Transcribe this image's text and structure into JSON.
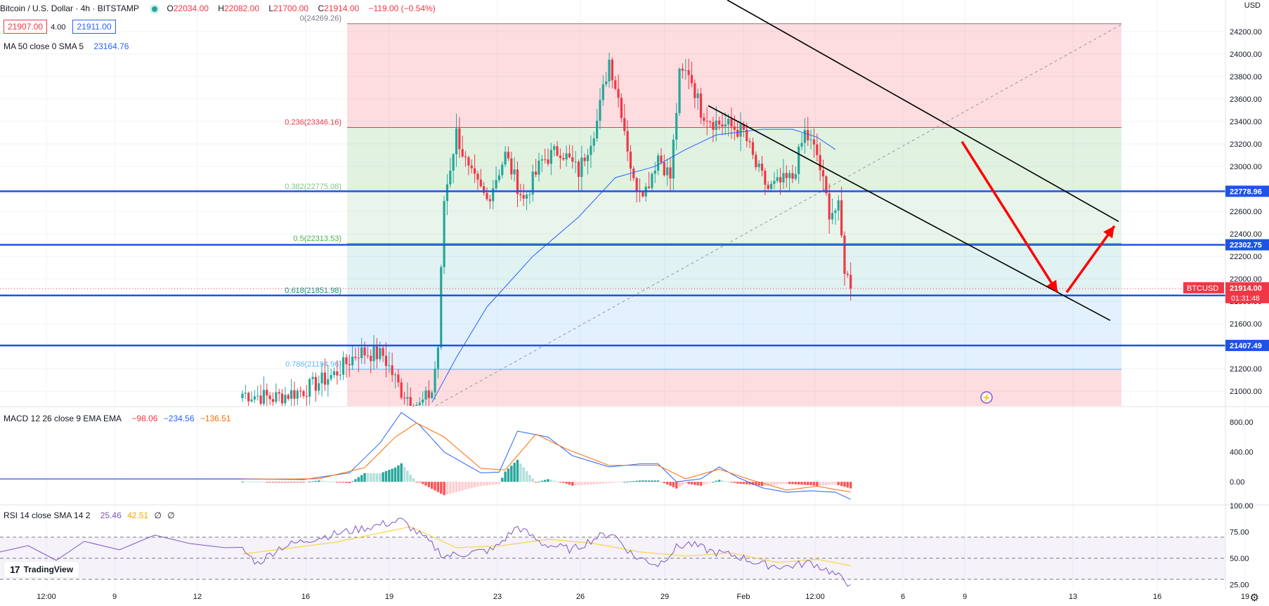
{
  "header": {
    "title": "Bitcoin / U.S. Dollar · 4h · BITSTAMP",
    "o_label": "O",
    "o": "22034.00",
    "h_label": "H",
    "h": "22082.00",
    "l_label": "L",
    "l": "21700.00",
    "c_label": "C",
    "c": "21914.00",
    "change": "−119.00 (−0.54%)",
    "bid": "21907.00",
    "spread": "4.00",
    "ask": "21911.00",
    "ma_label": "MA 50 close 0 SMA 5",
    "ma_value": "23164.76",
    "currency": "USD"
  },
  "macd_legend": {
    "label": "MACD 12 26 close 9 EMA EMA",
    "v1": "−98.06",
    "v2": "−234.56",
    "v3": "−136.51"
  },
  "rsi_legend": {
    "label": "RSI 14 close SMA 14 2",
    "v1": "25.46",
    "v2": "42.51",
    "v3": "∅",
    "v4": "∅"
  },
  "watermark": "TradingView",
  "colors": {
    "up": "#26a69a",
    "down": "#f23645",
    "level": "#1e53e5",
    "ma": "#2962ff",
    "signal": "#ff6d00",
    "rsi": "#7e57c2",
    "rsi_ma": "#f7d44a"
  },
  "chart_data": [
    {
      "type": "candlestick",
      "title": "Bitcoin / U.S. Dollar · 4h · BITSTAMP",
      "ylim": [
        20870,
        24480
      ],
      "y_ticks": [
        "24200.00",
        "24000.00",
        "23800.00",
        "23600.00",
        "23400.00",
        "23200.00",
        "23000.00",
        "22800.00",
        "22600.00",
        "22400.00",
        "22200.00",
        "22000.00",
        "21800.00",
        "21600.00",
        "21400.00",
        "21200.00",
        "21000.00"
      ],
      "x_ticks": [
        "12:00",
        "9",
        "12",
        "16",
        "19",
        "23",
        "26",
        "29",
        "Feb",
        "12:00",
        "6",
        "9",
        "13",
        "16",
        "19"
      ],
      "fibonacci": [
        {
          "label": "0(24269.26)",
          "price": 24269.26
        },
        {
          "label": "0.236(23346.16)",
          "price": 23346.16
        },
        {
          "label": "0.382(22775.08)",
          "price": 22775.08
        },
        {
          "label": "0.5(22313.53)",
          "price": 22313.53
        },
        {
          "label": "0.618(21851.98)",
          "price": 21851.98
        },
        {
          "label": "0.786(21194.96)",
          "price": 21194.96
        }
      ],
      "levels": [
        {
          "label": "22778.96",
          "price": 22778.96
        },
        {
          "label": "22302.75",
          "price": 22302.75
        },
        {
          "label": "21851.95",
          "price": 21851.95
        },
        {
          "label": "21407.49",
          "price": 21407.49
        }
      ],
      "last_price": {
        "symbol": "BTCUSD",
        "price": "21914.00",
        "countdown": "01:31:48",
        "value": 21914
      },
      "anchors": [
        {
          "x": 0,
          "close": 20980
        },
        {
          "x": 10,
          "close": 20940
        },
        {
          "x": 20,
          "close": 21010
        },
        {
          "x": 30,
          "close": 21150
        },
        {
          "x": 38,
          "close": 21350
        },
        {
          "x": 46,
          "close": 21320
        },
        {
          "x": 52,
          "close": 21000
        },
        {
          "x": 58,
          "close": 20870
        },
        {
          "x": 62,
          "close": 21000
        },
        {
          "x": 64,
          "close": 21400
        },
        {
          "x": 66,
          "close": 22700
        },
        {
          "x": 70,
          "close": 23300
        },
        {
          "x": 74,
          "close": 22950
        },
        {
          "x": 80,
          "close": 22700
        },
        {
          "x": 86,
          "close": 23100
        },
        {
          "x": 92,
          "close": 22700
        },
        {
          "x": 98,
          "close": 23050
        },
        {
          "x": 104,
          "close": 23150
        },
        {
          "x": 110,
          "close": 22950
        },
        {
          "x": 116,
          "close": 23400
        },
        {
          "x": 120,
          "close": 23950
        },
        {
          "x": 124,
          "close": 23500
        },
        {
          "x": 128,
          "close": 22850
        },
        {
          "x": 132,
          "close": 22800
        },
        {
          "x": 136,
          "close": 23100
        },
        {
          "x": 140,
          "close": 22900
        },
        {
          "x": 143,
          "close": 23800
        },
        {
          "x": 146,
          "close": 23850
        },
        {
          "x": 150,
          "close": 23500
        },
        {
          "x": 154,
          "close": 23400
        },
        {
          "x": 160,
          "close": 23350
        },
        {
          "x": 164,
          "close": 23300
        },
        {
          "x": 168,
          "close": 23000
        },
        {
          "x": 172,
          "close": 22800
        },
        {
          "x": 176,
          "close": 22850
        },
        {
          "x": 180,
          "close": 22900
        },
        {
          "x": 184,
          "close": 23300
        },
        {
          "x": 188,
          "close": 23100
        },
        {
          "x": 192,
          "close": 22600
        },
        {
          "x": 195,
          "close": 22620
        },
        {
          "x": 197,
          "close": 22100
        },
        {
          "x": 199,
          "close": 21914
        }
      ],
      "ma50": [
        {
          "x": 62,
          "y": 20900
        },
        {
          "x": 70,
          "y": 21300
        },
        {
          "x": 80,
          "y": 21750
        },
        {
          "x": 95,
          "y": 22200
        },
        {
          "x": 110,
          "y": 22550
        },
        {
          "x": 122,
          "y": 22900
        },
        {
          "x": 135,
          "y": 23000
        },
        {
          "x": 145,
          "y": 23150
        },
        {
          "x": 155,
          "y": 23280
        },
        {
          "x": 170,
          "y": 23330
        },
        {
          "x": 180,
          "y": 23330
        },
        {
          "x": 188,
          "y": 23260
        },
        {
          "x": 194,
          "y": 23150
        }
      ]
    },
    {
      "type": "line",
      "title": "MACD 12 26 close 9 EMA EMA",
      "ylim": [
        -300,
        1000
      ],
      "y_ticks": [
        "800.00",
        "400.00",
        "0.00"
      ],
      "macd_anchors": [
        {
          "x": 0,
          "y": 40
        },
        {
          "x": 20,
          "y": 30
        },
        {
          "x": 35,
          "y": 120
        },
        {
          "x": 45,
          "y": 520
        },
        {
          "x": 52,
          "y": 930
        },
        {
          "x": 58,
          "y": 760
        },
        {
          "x": 66,
          "y": 400
        },
        {
          "x": 78,
          "y": 120
        },
        {
          "x": 84,
          "y": 130
        },
        {
          "x": 90,
          "y": 680
        },
        {
          "x": 100,
          "y": 600
        },
        {
          "x": 108,
          "y": 350
        },
        {
          "x": 120,
          "y": 200
        },
        {
          "x": 130,
          "y": 240
        },
        {
          "x": 136,
          "y": 240
        },
        {
          "x": 142,
          "y": 0
        },
        {
          "x": 150,
          "y": 40
        },
        {
          "x": 156,
          "y": 200
        },
        {
          "x": 162,
          "y": 60
        },
        {
          "x": 170,
          "y": -80
        },
        {
          "x": 178,
          "y": -140
        },
        {
          "x": 186,
          "y": -120
        },
        {
          "x": 194,
          "y": -140
        },
        {
          "x": 199,
          "y": -235
        }
      ],
      "signal_anchors": [
        {
          "x": 0,
          "y": 35
        },
        {
          "x": 25,
          "y": 40
        },
        {
          "x": 40,
          "y": 190
        },
        {
          "x": 50,
          "y": 600
        },
        {
          "x": 57,
          "y": 790
        },
        {
          "x": 66,
          "y": 600
        },
        {
          "x": 78,
          "y": 180
        },
        {
          "x": 86,
          "y": 160
        },
        {
          "x": 96,
          "y": 640
        },
        {
          "x": 106,
          "y": 440
        },
        {
          "x": 120,
          "y": 220
        },
        {
          "x": 136,
          "y": 220
        },
        {
          "x": 145,
          "y": 40
        },
        {
          "x": 156,
          "y": 170
        },
        {
          "x": 166,
          "y": 30
        },
        {
          "x": 178,
          "y": -110
        },
        {
          "x": 188,
          "y": -60
        },
        {
          "x": 199,
          "y": -137
        }
      ]
    },
    {
      "type": "line",
      "title": "RSI 14 close SMA 14 2",
      "ylim": [
        20,
        100
      ],
      "y_ticks": [
        "100.00",
        "75.00",
        "50.00",
        "25.00"
      ],
      "bands": [
        70,
        50,
        30
      ],
      "rsi_anchors": [
        {
          "x": 0,
          "y": 58
        },
        {
          "x": 5,
          "y": 45
        },
        {
          "x": 12,
          "y": 60
        },
        {
          "x": 22,
          "y": 68
        },
        {
          "x": 32,
          "y": 74
        },
        {
          "x": 42,
          "y": 80
        },
        {
          "x": 52,
          "y": 86
        },
        {
          "x": 60,
          "y": 68
        },
        {
          "x": 66,
          "y": 52
        },
        {
          "x": 74,
          "y": 55
        },
        {
          "x": 82,
          "y": 58
        },
        {
          "x": 90,
          "y": 80
        },
        {
          "x": 98,
          "y": 64
        },
        {
          "x": 108,
          "y": 58
        },
        {
          "x": 116,
          "y": 70
        },
        {
          "x": 121,
          "y": 74
        },
        {
          "x": 128,
          "y": 52
        },
        {
          "x": 136,
          "y": 44
        },
        {
          "x": 142,
          "y": 60
        },
        {
          "x": 146,
          "y": 64
        },
        {
          "x": 154,
          "y": 56
        },
        {
          "x": 162,
          "y": 52
        },
        {
          "x": 170,
          "y": 44
        },
        {
          "x": 178,
          "y": 42
        },
        {
          "x": 186,
          "y": 46
        },
        {
          "x": 192,
          "y": 38
        },
        {
          "x": 199,
          "y": 25
        }
      ],
      "rsi_ma_anchors": [
        {
          "x": 0,
          "y": 54
        },
        {
          "x": 30,
          "y": 65
        },
        {
          "x": 55,
          "y": 80
        },
        {
          "x": 70,
          "y": 60
        },
        {
          "x": 85,
          "y": 62
        },
        {
          "x": 100,
          "y": 68
        },
        {
          "x": 115,
          "y": 64
        },
        {
          "x": 130,
          "y": 56
        },
        {
          "x": 145,
          "y": 52
        },
        {
          "x": 160,
          "y": 55
        },
        {
          "x": 175,
          "y": 46
        },
        {
          "x": 188,
          "y": 49
        },
        {
          "x": 199,
          "y": 43
        }
      ]
    }
  ]
}
